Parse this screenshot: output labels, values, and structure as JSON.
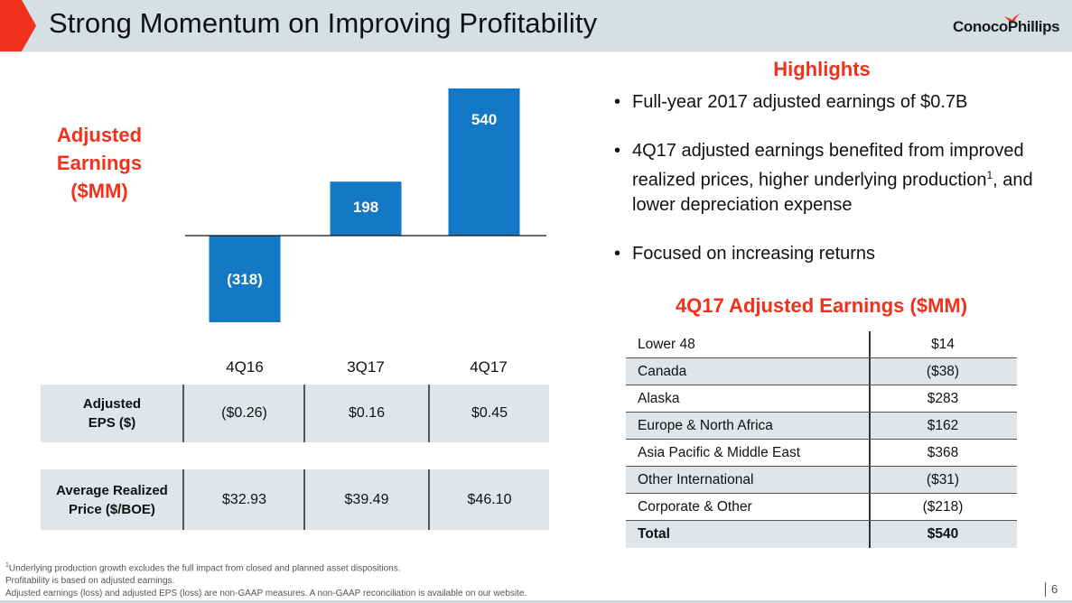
{
  "header": {
    "title": "Strong Momentum on Improving Profitability",
    "logo_text_a": "Conoco",
    "logo_text_b": "Phillips",
    "accent_color": "#f2311c"
  },
  "chart_data": {
    "type": "bar",
    "title": "Adjusted Earnings ($MM)",
    "title_lines": [
      "Adjusted",
      "Earnings",
      "($MM)"
    ],
    "categories": [
      "4Q16",
      "3Q17",
      "4Q17"
    ],
    "values": [
      -318,
      198,
      540
    ],
    "data_labels": [
      "(318)",
      "198",
      "540"
    ],
    "xlabel": "",
    "ylabel": "Adjusted Earnings ($MM)",
    "ylim": [
      -318,
      540
    ],
    "grid": false,
    "bar_color": "#1378c6"
  },
  "metrics": {
    "quarters": [
      "4Q16",
      "3Q17",
      "4Q17"
    ],
    "rows": [
      {
        "label_lines": [
          "Adjusted",
          "EPS ($)"
        ],
        "values": [
          "($0.26)",
          "$0.16",
          "$0.45"
        ]
      },
      {
        "label_lines": [
          "Average Realized",
          "Price ($/BOE)"
        ],
        "values": [
          "$32.93",
          "$39.49",
          "$46.10"
        ]
      }
    ]
  },
  "highlights": {
    "title": "Highlights",
    "bullets": [
      {
        "text": "Full-year 2017 adjusted earnings of $0.7B"
      },
      {
        "text": "4Q17 adjusted earnings benefited from improved realized prices, higher underlying production",
        "sup": "1",
        "tail": ", and lower depreciation expense"
      },
      {
        "text": "Focused on increasing returns"
      }
    ]
  },
  "segments": {
    "title": "4Q17 Adjusted Earnings ($MM)",
    "rows": [
      {
        "name": "Lower 48",
        "value": "$14"
      },
      {
        "name": "Canada",
        "value": "($38)"
      },
      {
        "name": "Alaska",
        "value": "$283"
      },
      {
        "name": "Europe & North Africa",
        "value": "$162"
      },
      {
        "name": "Asia Pacific & Middle East",
        "value": "$368"
      },
      {
        "name": "Other International",
        "value": "($31)"
      },
      {
        "name": "Corporate & Other",
        "value": "($218)"
      },
      {
        "name": "Total",
        "value": "$540"
      }
    ]
  },
  "footnotes": {
    "line1_sup": "1",
    "line1": "Underlying production growth excludes the full impact from closed and planned asset dispositions.",
    "line2": "Profitability is based on adjusted earnings.",
    "line3": "Adjusted earnings (loss) and adjusted EPS (loss) are non-GAAP measures. A non-GAAP reconciliation is available on our website."
  },
  "page_number": "6"
}
